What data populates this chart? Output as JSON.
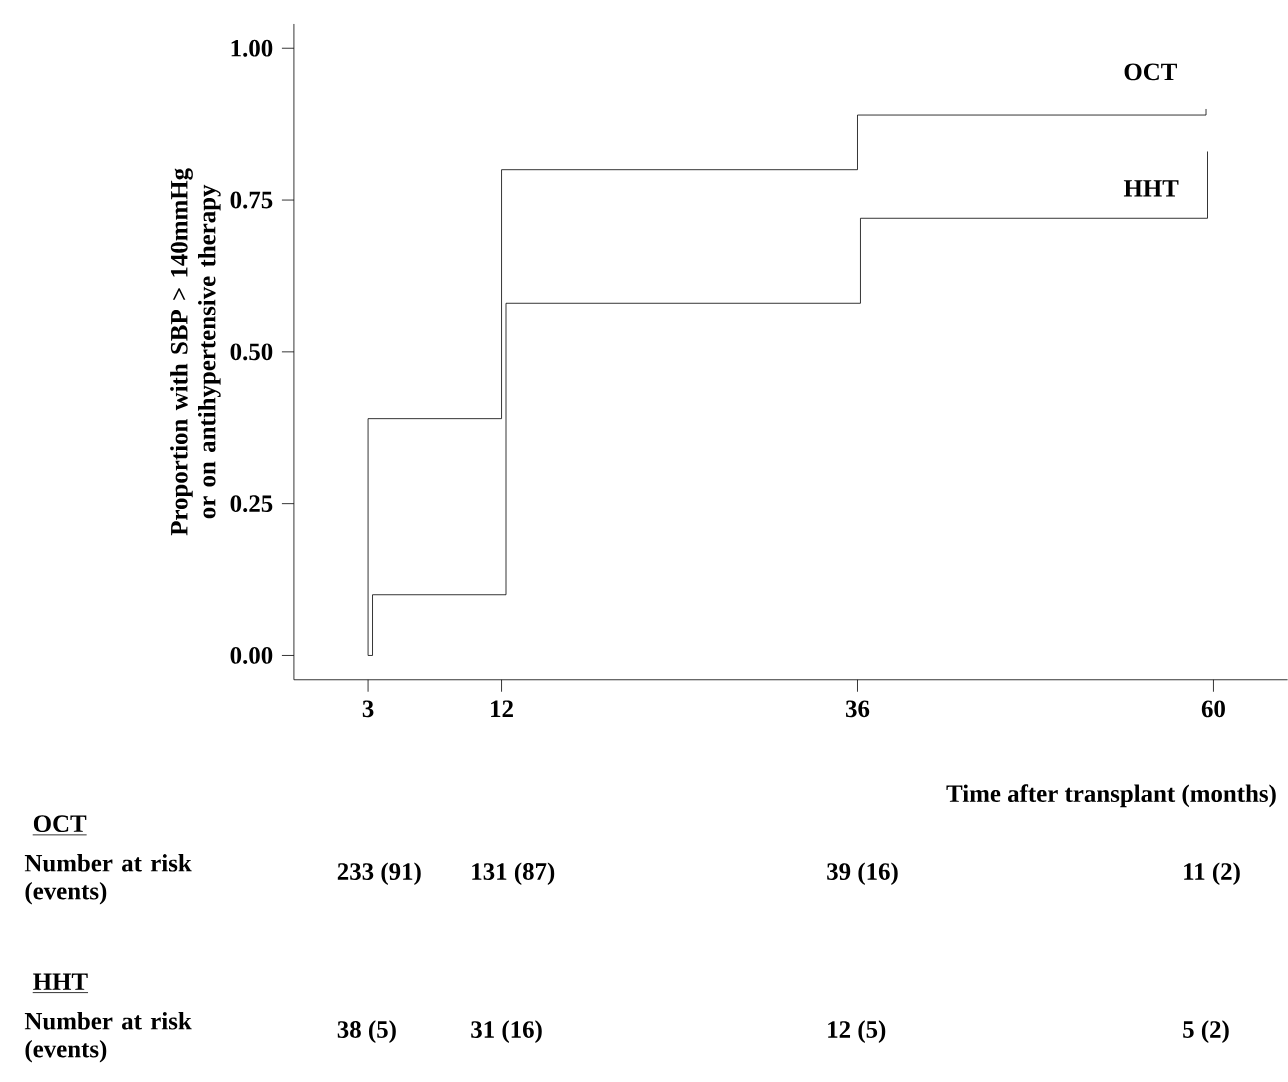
{
  "chart_data": {
    "type": "step",
    "xlabel": "Time after transplant (months)",
    "ylabel": "Proportion with SBP > 140mmHg or on antihypertensive therapy",
    "xlim": [
      -2,
      65
    ],
    "ylim": [
      -0.04,
      1.04
    ],
    "xticks": [
      3,
      12,
      36,
      60
    ],
    "yticks": [
      {
        "value": 0,
        "label": "0.00"
      },
      {
        "value": 0.25,
        "label": "0.25"
      },
      {
        "value": 0.5,
        "label": "0.50"
      },
      {
        "value": 0.75,
        "label": "0.75"
      },
      {
        "value": 1,
        "label": "1.00"
      }
    ],
    "series": [
      {
        "name": "OCT",
        "color": "#000000",
        "x": [
          3,
          3,
          12,
          36,
          59.5
        ],
        "values": [
          0,
          0.39,
          0.8,
          0.89,
          0.9
        ]
      },
      {
        "name": "HHT",
        "color": "#000000",
        "x": [
          3,
          3.3,
          12.3,
          36.2,
          59.6
        ],
        "values": [
          0,
          0.1,
          0.58,
          0.72,
          0.83
        ]
      }
    ],
    "annotations": [
      "OCT",
      "Number at risk (events)",
      "233 (91)",
      "131 (87)",
      "39 (16)",
      "11 (2)",
      "HHT",
      "Number at risk (events)",
      "38 (5)",
      "31 (16)",
      "12 (5)",
      "5 (2)"
    ]
  }
}
